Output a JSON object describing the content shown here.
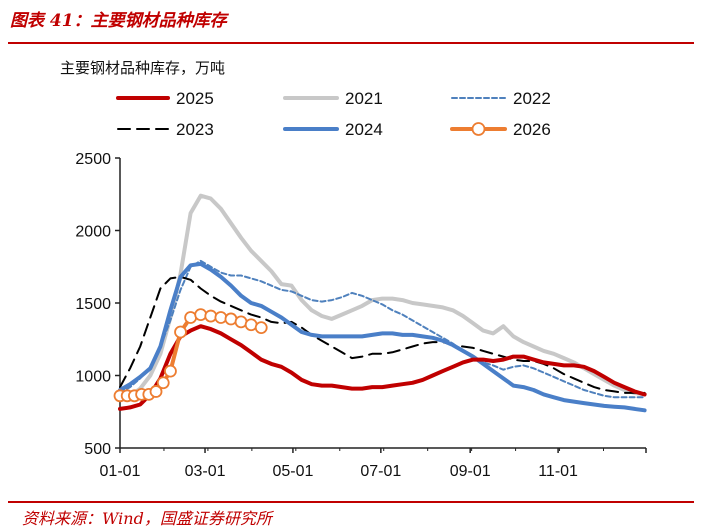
{
  "figure": {
    "title": "图表 41：主要钢材品种库存",
    "source": "资料来源：Wind，国盛证券研究所"
  },
  "chart_data": {
    "type": "line",
    "title": "图表 41：主要钢材品种库存",
    "ylabel": "主要钢材品种库存，万吨",
    "xlabel": "",
    "ylim": [
      500,
      2500
    ],
    "yticks": [
      500,
      1000,
      1500,
      2000,
      2500
    ],
    "xlim": [
      0,
      365
    ],
    "xticks": [
      {
        "label": "01-01",
        "day": 0
      },
      {
        "label": "03-01",
        "day": 59
      },
      {
        "label": "05-01",
        "day": 120
      },
      {
        "label": "07-01",
        "day": 181
      },
      {
        "label": "09-01",
        "day": 243
      },
      {
        "label": "11-01",
        "day": 304
      }
    ],
    "legend_order": [
      "2025",
      "2021",
      "2022",
      "2023",
      "2024",
      "2026"
    ],
    "series": [
      {
        "name": "2021",
        "color": "#c8c8c8",
        "style": "solid",
        "width": 4,
        "x": [
          0,
          7,
          14,
          21,
          28,
          35,
          42,
          49,
          56,
          63,
          70,
          77,
          84,
          91,
          98,
          105,
          112,
          119,
          126,
          133,
          140,
          147,
          154,
          161,
          168,
          175,
          182,
          189,
          196,
          203,
          210,
          217,
          224,
          231,
          238,
          245,
          252,
          259,
          266,
          273,
          280,
          287,
          294,
          301,
          308,
          315,
          322,
          329,
          336,
          343,
          350,
          357,
          364
        ],
        "values": [
          840,
          860,
          910,
          1000,
          1150,
          1400,
          1700,
          2120,
          2240,
          2220,
          2150,
          2050,
          1950,
          1860,
          1790,
          1720,
          1630,
          1620,
          1520,
          1450,
          1410,
          1390,
          1420,
          1450,
          1480,
          1520,
          1530,
          1530,
          1520,
          1500,
          1490,
          1480,
          1470,
          1450,
          1410,
          1360,
          1310,
          1290,
          1340,
          1270,
          1230,
          1200,
          1170,
          1150,
          1120,
          1090,
          1050,
          1010,
          970,
          930,
          900,
          880,
          870
        ]
      },
      {
        "name": "2022",
        "color": "#4f81bd",
        "style": "dashed",
        "width": 2,
        "x": [
          0,
          7,
          14,
          21,
          28,
          35,
          42,
          49,
          56,
          63,
          70,
          77,
          84,
          91,
          98,
          105,
          112,
          119,
          126,
          133,
          140,
          147,
          154,
          161,
          168,
          175,
          182,
          189,
          196,
          203,
          210,
          217,
          224,
          231,
          238,
          245,
          252,
          259,
          266,
          273,
          280,
          287,
          294,
          301,
          308,
          315,
          322,
          329,
          336,
          343,
          350,
          357,
          364
        ],
        "values": [
          880,
          920,
          980,
          1060,
          1200,
          1380,
          1590,
          1750,
          1790,
          1750,
          1710,
          1690,
          1690,
          1670,
          1650,
          1620,
          1590,
          1580,
          1550,
          1520,
          1510,
          1520,
          1540,
          1570,
          1550,
          1520,
          1490,
          1450,
          1420,
          1380,
          1340,
          1300,
          1260,
          1220,
          1170,
          1120,
          1090,
          1070,
          1040,
          1060,
          1070,
          1050,
          1020,
          990,
          960,
          930,
          900,
          880,
          860,
          850,
          850,
          850,
          850
        ]
      },
      {
        "name": "2023",
        "color": "#000000",
        "style": "dashed",
        "width": 2,
        "x": [
          0,
          7,
          14,
          21,
          28,
          35,
          42,
          49,
          56,
          63,
          70,
          77,
          84,
          91,
          98,
          105,
          112,
          119,
          126,
          133,
          140,
          147,
          154,
          161,
          168,
          175,
          182,
          189,
          196,
          203,
          210,
          217,
          224,
          231,
          238,
          245,
          252,
          259,
          266,
          273,
          280,
          287,
          294,
          301,
          308,
          315,
          322,
          329,
          336,
          343,
          350,
          357,
          364
        ],
        "values": [
          920,
          1050,
          1200,
          1400,
          1600,
          1670,
          1680,
          1660,
          1600,
          1550,
          1510,
          1480,
          1450,
          1420,
          1400,
          1370,
          1360,
          1370,
          1330,
          1280,
          1240,
          1200,
          1160,
          1120,
          1130,
          1150,
          1150,
          1160,
          1180,
          1200,
          1220,
          1230,
          1230,
          1210,
          1200,
          1190,
          1170,
          1150,
          1130,
          1110,
          1100,
          1100,
          1080,
          1050,
          1010,
          980,
          950,
          920,
          900,
          890,
          880,
          880,
          880
        ]
      },
      {
        "name": "2024",
        "color": "#4a7fc8",
        "style": "solid",
        "width": 4,
        "x": [
          0,
          7,
          14,
          21,
          28,
          35,
          42,
          49,
          56,
          63,
          70,
          77,
          84,
          91,
          98,
          105,
          112,
          119,
          126,
          133,
          140,
          147,
          154,
          161,
          168,
          175,
          182,
          189,
          196,
          203,
          210,
          217,
          224,
          231,
          238,
          245,
          252,
          259,
          266,
          273,
          280,
          287,
          294,
          301,
          308,
          315,
          322,
          329,
          336,
          343,
          350,
          357,
          364
        ],
        "values": [
          900,
          940,
          990,
          1050,
          1200,
          1450,
          1680,
          1760,
          1770,
          1730,
          1680,
          1620,
          1550,
          1500,
          1480,
          1440,
          1400,
          1350,
          1300,
          1280,
          1270,
          1270,
          1270,
          1270,
          1270,
          1280,
          1290,
          1290,
          1280,
          1280,
          1270,
          1260,
          1240,
          1210,
          1170,
          1130,
          1080,
          1030,
          980,
          930,
          920,
          900,
          870,
          850,
          830,
          820,
          810,
          800,
          790,
          785,
          780,
          770,
          760
        ]
      },
      {
        "name": "2025",
        "color": "#c00000",
        "style": "solid",
        "width": 4,
        "x": [
          0,
          7,
          14,
          21,
          28,
          35,
          42,
          49,
          56,
          63,
          70,
          77,
          84,
          91,
          98,
          105,
          112,
          119,
          126,
          133,
          140,
          147,
          154,
          161,
          168,
          175,
          182,
          189,
          196,
          203,
          210,
          217,
          224,
          231,
          238,
          245,
          252,
          259,
          266,
          273,
          280,
          287,
          294,
          301,
          308,
          315,
          322,
          329,
          336,
          343,
          350,
          357,
          364
        ],
        "values": [
          770,
          780,
          800,
          870,
          980,
          1150,
          1270,
          1310,
          1340,
          1320,
          1290,
          1250,
          1210,
          1160,
          1110,
          1080,
          1060,
          1020,
          970,
          940,
          930,
          930,
          920,
          910,
          910,
          920,
          920,
          930,
          940,
          950,
          970,
          1000,
          1030,
          1060,
          1090,
          1110,
          1110,
          1100,
          1110,
          1130,
          1130,
          1110,
          1090,
          1080,
          1070,
          1070,
          1060,
          1030,
          990,
          950,
          920,
          890,
          870
        ]
      },
      {
        "name": "2026",
        "color": "#ed7d31",
        "style": "solid-markers",
        "width": 4,
        "x": [
          0,
          5,
          10,
          15,
          20,
          25,
          30,
          35,
          42,
          49,
          56,
          63,
          70,
          77,
          84,
          91,
          98
        ],
        "values": [
          860,
          860,
          860,
          870,
          870,
          890,
          950,
          1030,
          1300,
          1400,
          1420,
          1410,
          1400,
          1390,
          1370,
          1350,
          1330
        ]
      }
    ]
  }
}
